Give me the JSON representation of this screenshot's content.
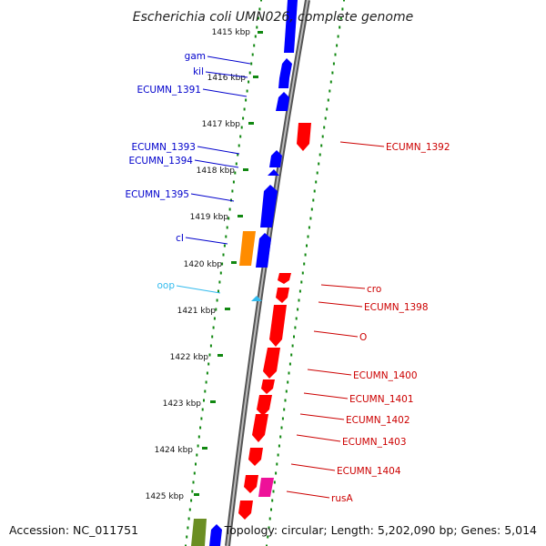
{
  "title": "Escherichia coli UMN026, complete genome",
  "footer": {
    "accession": "Accession: NC_011751",
    "summary": "Topology: circular; Length: 5,202,090 bp; Genes: 5,014"
  },
  "colors": {
    "forward": "#0000ff",
    "reverse": "#ff0000",
    "orange": "#ff8c00",
    "cyan": "#33bbee",
    "magenta": "#ee1199",
    "olive": "#6b8e23",
    "dots": "#118811",
    "backbone": "#888888"
  },
  "ticks": [
    {
      "label": "1415 kbp"
    },
    {
      "label": "1416 kbp"
    },
    {
      "label": "1417 kbp"
    },
    {
      "label": "1418 kbp"
    },
    {
      "label": "1419 kbp"
    },
    {
      "label": "1420 kbp"
    },
    {
      "label": "1421 kbp"
    },
    {
      "label": "1422 kbp"
    },
    {
      "label": "1423 kbp"
    },
    {
      "label": "1424 kbp"
    },
    {
      "label": "1425 kbp"
    }
  ],
  "left_labels": [
    {
      "text": "gam",
      "color": "#0000cc"
    },
    {
      "text": "kil",
      "color": "#0000cc"
    },
    {
      "text": "ECUMN_1391",
      "color": "#0000cc"
    },
    {
      "text": "ECUMN_1393",
      "color": "#0000cc"
    },
    {
      "text": "ECUMN_1394",
      "color": "#0000cc"
    },
    {
      "text": "ECUMN_1395",
      "color": "#0000cc"
    },
    {
      "text": "cI",
      "color": "#0000cc"
    },
    {
      "text": "oop",
      "color": "#33bbee"
    }
  ],
  "right_labels": [
    {
      "text": "ECUMN_1392"
    },
    {
      "text": "cro"
    },
    {
      "text": "ECUMN_1398"
    },
    {
      "text": "O"
    },
    {
      "text": "ECUMN_1400"
    },
    {
      "text": "ECUMN_1401"
    },
    {
      "text": "ECUMN_1402"
    },
    {
      "text": "ECUMN_1403"
    },
    {
      "text": "ECUMN_1404"
    },
    {
      "text": "rusA"
    }
  ]
}
